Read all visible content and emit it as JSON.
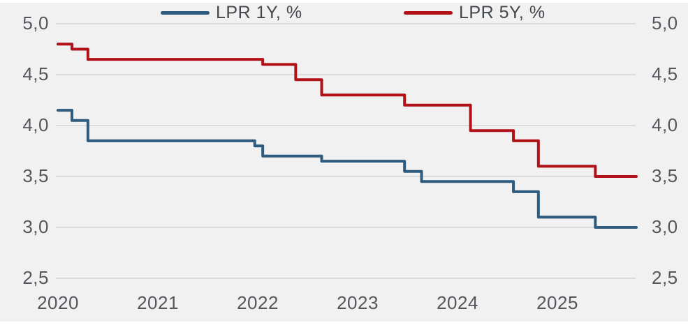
{
  "chart_data": {
    "type": "line",
    "step": true,
    "title": "",
    "xlabel": "",
    "ylabel": "",
    "grid": "horizontal",
    "legend_position": "top",
    "x_axis": {
      "range": [
        2020.0,
        2025.79
      ],
      "ticks": [
        2020,
        2021,
        2022,
        2023,
        2024,
        2025
      ],
      "labels": [
        "2020",
        "2021",
        "2022",
        "2023",
        "2024",
        "2025"
      ]
    },
    "y_axis": {
      "range": [
        2.5,
        5.0
      ],
      "ticks": [
        5.0,
        4.5,
        4.0,
        3.5,
        3.0,
        2.5
      ],
      "labels": [
        "5,0",
        "4,5",
        "4,0",
        "3,5",
        "3,0",
        "2,5"
      ],
      "sides": "both"
    },
    "series": [
      {
        "name": "LPR 1Y, %",
        "color": "#2e5b7e",
        "points": [
          [
            2020.0,
            4.15
          ],
          [
            2020.14,
            4.05
          ],
          [
            2020.3,
            3.85
          ],
          [
            2021.97,
            3.8
          ],
          [
            2022.05,
            3.7
          ],
          [
            2022.64,
            3.65
          ],
          [
            2023.47,
            3.55
          ],
          [
            2023.64,
            3.45
          ],
          [
            2024.56,
            3.35
          ],
          [
            2024.81,
            3.1
          ],
          [
            2025.38,
            3.0
          ],
          [
            2025.79,
            3.0
          ]
        ]
      },
      {
        "name": "LPR 5Y, %",
        "color": "#b11218",
        "points": [
          [
            2020.0,
            4.8
          ],
          [
            2020.14,
            4.75
          ],
          [
            2020.3,
            4.65
          ],
          [
            2022.05,
            4.6
          ],
          [
            2022.38,
            4.45
          ],
          [
            2022.64,
            4.3
          ],
          [
            2023.47,
            4.2
          ],
          [
            2024.13,
            3.95
          ],
          [
            2024.56,
            3.85
          ],
          [
            2024.81,
            3.6
          ],
          [
            2025.38,
            3.5
          ],
          [
            2025.79,
            3.5
          ]
        ]
      }
    ],
    "colors": {
      "panel_background": "#f1f1f2",
      "page_background": "#ffffff",
      "gridline": "#dcdcdd",
      "tick_text": "#55575c",
      "legend_text": "#44474b"
    }
  }
}
